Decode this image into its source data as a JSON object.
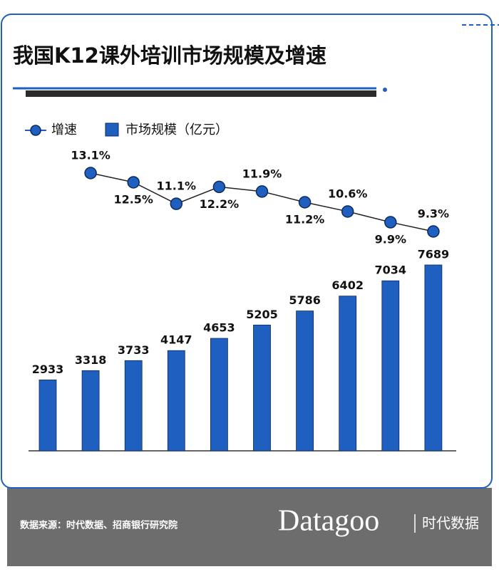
{
  "chart_data": {
    "type": "bar-line",
    "title": "我国K12课外培训市场规模及增速",
    "series": [
      {
        "name": "增速",
        "type": "line",
        "color": "#1f5fbf",
        "values": [
          null,
          13.1,
          12.5,
          11.1,
          12.2,
          11.9,
          11.2,
          10.6,
          9.9,
          9.3
        ],
        "value_labels": [
          null,
          "13.1%",
          "12.5%",
          "11.1%",
          "12.2%",
          "11.9%",
          "11.2%",
          "10.6%",
          "9.9%",
          "9.3%"
        ]
      },
      {
        "name": "市场规模（亿元）",
        "type": "bar",
        "color": "#1f5fbf",
        "values": [
          2933,
          3318,
          3733,
          4147,
          4653,
          5205,
          5786,
          6402,
          7034,
          7689
        ]
      }
    ]
  },
  "footer": {
    "source": "数据来源：时代数据、招商银行研究院",
    "brand": "Datagoo",
    "brand_cn": "时代数据"
  }
}
